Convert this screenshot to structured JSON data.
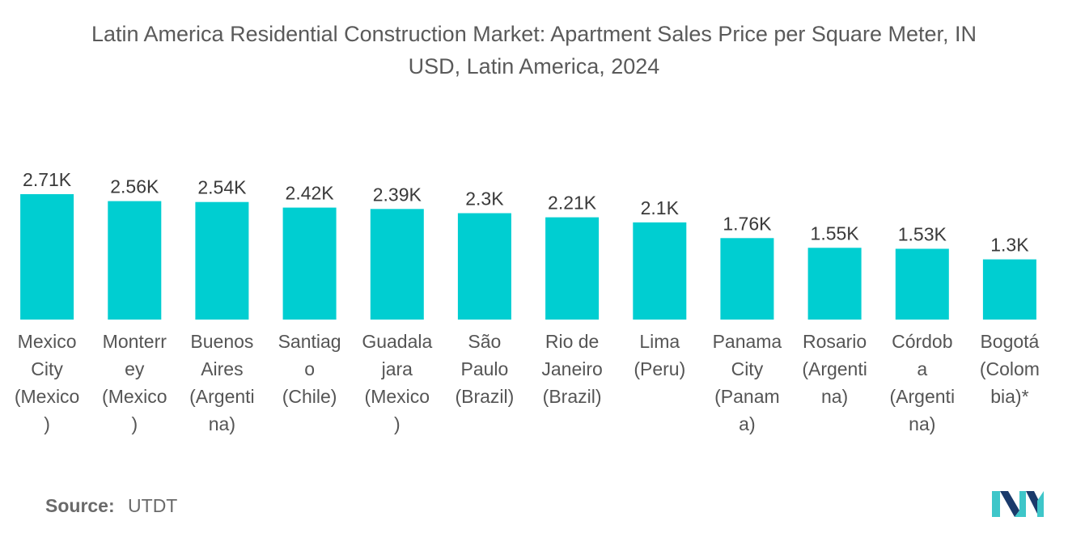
{
  "chart_data": {
    "type": "bar",
    "title": "Latin America Residential Construction Market: Apartment Sales Price per Square Meter, IN USD, Latin America, 2024",
    "title_lines": [
      "Latin America Residential Construction Market: Apartment Sales Price per Square Meter, IN",
      "USD, Latin America, 2024"
    ],
    "xlabel": "",
    "ylabel": "",
    "ylim": [
      0,
      2.71
    ],
    "grid": false,
    "categories": [
      "Mexico City (Mexico)",
      "Monterrey (Mexico)",
      "Buenos Aires (Argentina)",
      "Santiago (Chile)",
      "Guadalajara (Mexico)",
      "São Paulo (Brazil)",
      "Rio de Janeiro (Brazil)",
      "Lima (Peru)",
      "Panama City (Panama)",
      "Rosario (Argentina)",
      "Córdoba (Argentina)",
      "Bogotá (Colombia)*"
    ],
    "category_label_lines": [
      [
        "Mexico",
        "City",
        "(Mexico",
        ")"
      ],
      [
        "Monterr",
        "ey",
        "(Mexico",
        ")"
      ],
      [
        "Buenos",
        "Aires",
        "(Argenti",
        "na)"
      ],
      [
        "Santiag",
        "o",
        "(Chile)"
      ],
      [
        "Guadala",
        "jara",
        "(Mexico",
        ")"
      ],
      [
        "São",
        "Paulo",
        "(Brazil)"
      ],
      [
        "Rio de",
        "Janeiro",
        "(Brazil)"
      ],
      [
        "Lima",
        "(Peru)"
      ],
      [
        "Panama",
        "City",
        "(Panam",
        "a)"
      ],
      [
        "Rosario",
        "(Argenti",
        "na)"
      ],
      [
        "Córdob",
        "a",
        "(Argenti",
        "na)"
      ],
      [
        "Bogotá",
        "(Colom",
        "bia)*"
      ]
    ],
    "values": [
      2.71,
      2.56,
      2.54,
      2.42,
      2.39,
      2.3,
      2.21,
      2.1,
      1.76,
      1.55,
      1.53,
      1.3
    ],
    "value_unit": "K",
    "data_labels": [
      "2.71K",
      "2.56K",
      "2.54K",
      "2.42K",
      "2.39K",
      "2.3K",
      "2.21K",
      "2.1K",
      "1.76K",
      "1.55K",
      "1.53K",
      "1.3K"
    ],
    "bar_color": "#00CED1"
  },
  "source": {
    "label": "Source:",
    "value": "UTDT"
  },
  "logo": {
    "name": "mordor-intelligence-logo",
    "colors": [
      "#1a3a6b",
      "#3ec6c9"
    ]
  }
}
